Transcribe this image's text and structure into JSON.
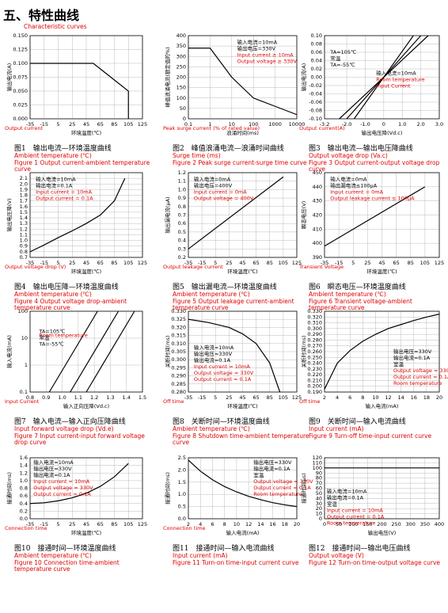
{
  "header": {
    "title": "五、特性曲线",
    "title_en": "Characteristic curves"
  },
  "chart_data": [
    {
      "type": "line",
      "caption": "图1　输出电流—环境温度曲线",
      "caption_en": "Figure 1 Output current-ambient temperature curve",
      "xlabel": "环境温度(℃)",
      "ylabel": "输出电流(A)",
      "xlabel_en": "Ambient temperature (℃)",
      "ylabel_en": "Output current",
      "annotations": [],
      "annotations_en": [],
      "xlim": [
        -35,
        125
      ],
      "xticks": [
        -35,
        -15,
        5,
        25,
        45,
        65,
        85,
        105,
        125
      ],
      "ylim": [
        0,
        0.15
      ],
      "yticks": [
        {
          "value": 0,
          "label": "0.000"
        },
        0.025,
        {
          "value": 0.05,
          "label": "0.050"
        },
        0.075,
        {
          "value": 0.1,
          "label": "0.100"
        },
        0.125,
        {
          "value": 0.15,
          "label": "0.150"
        }
      ],
      "grid": true,
      "series": [
        {
          "color": "#000000",
          "x": [
            -35,
            55,
            105,
            105
          ],
          "values": [
            0.1,
            0.1,
            0.05,
            0
          ]
        }
      ]
    },
    {
      "type": "line",
      "caption": "图2　峰值浪涌电流—浪涌时间曲线",
      "caption_en": "Figure 2  Peak surge current-surge time curve",
      "xlabel": "浪涌时间(ms)",
      "ylabel": "峰值浪涌电流(额定值的%)",
      "xlabel_en": "Surge time (ms)",
      "ylabel_en": "Peak surge current (% of rated value)",
      "annotations": [
        "输入电流=10mA",
        "输出电压=330V"
      ],
      "annotations_en": [
        "Input current ≥ 10mA",
        "Output voltage ≥ 330V"
      ],
      "xscale": "log",
      "xlim": [
        0.1,
        10000
      ],
      "xticks": [
        0.1,
        1,
        10,
        100,
        1000,
        10000
      ],
      "ylim": [
        0,
        400
      ],
      "yticks": [
        0,
        50,
        100,
        150,
        200,
        250,
        300,
        350,
        400
      ],
      "grid": true,
      "series": [
        {
          "color": "#000000",
          "x": [
            0.1,
            1,
            10,
            100,
            1000,
            10000
          ],
          "values": [
            340,
            340,
            200,
            100,
            60,
            20
          ]
        }
      ]
    },
    {
      "type": "line",
      "caption": "图3　输出电流—输出电压降曲线",
      "caption_en": "Figure 3 Output current-output voltage drop curve",
      "xlabel": "输出电压降(Vd.c)",
      "ylabel": "输出电流(A)",
      "xlabel_en": "Output voltage drop (Va.c)",
      "ylabel_en": "Output current(A)",
      "annotations": [
        "输入电流=10mA"
      ],
      "annotations_en": [
        "Room temperature",
        "Input Current"
      ],
      "xlim": [
        -3.2,
        3.0
      ],
      "xticks": [
        -3.2,
        {
          "value": -2,
          "label": "-2.0"
        },
        {
          "value": -1,
          "label": "-1.0"
        },
        0,
        {
          "value": 1,
          "label": "1.0"
        },
        {
          "value": 2,
          "label": "2.0"
        },
        {
          "value": 3,
          "label": "3.0"
        }
      ],
      "ylim": [
        -0.1,
        0.1
      ],
      "yticks": [
        {
          "value": -0.1,
          "label": "-0.10"
        },
        {
          "value": -0.08,
          "label": "-0.08"
        },
        {
          "value": -0.06,
          "label": "-0.06"
        },
        {
          "value": -0.04,
          "label": "-0.04"
        },
        {
          "value": -0.02,
          "label": "-0.02"
        },
        {
          "value": 0,
          "label": "0.00"
        },
        0.02,
        0.04,
        0.06,
        0.08,
        {
          "value": 0.1,
          "label": "0.10"
        }
      ],
      "grid": true,
      "series": [
        {
          "name": "TA=105℃",
          "color": "#000000",
          "x": [
            -1.6,
            1.6
          ],
          "values": [
            -0.1,
            0.1
          ]
        },
        {
          "name": "常温",
          "color": "#000000",
          "x": [
            -2.0,
            2.0
          ],
          "values": [
            -0.1,
            0.1
          ]
        },
        {
          "name": "TA=-55℃",
          "color": "#000000",
          "x": [
            -2.4,
            2.4
          ],
          "values": [
            -0.1,
            0.1
          ]
        }
      ]
    },
    {
      "type": "line",
      "caption": "图4　输出电压降—环境温度曲线",
      "caption_en": "Figure 4 Output voltage drop-ambient temperature curve",
      "xlabel": "环境温度(℃)",
      "ylabel": "输出电压降(V)",
      "xlabel_en": "Ambient temperature (℃)",
      "ylabel_en": "Output voltage drop (V)",
      "annotations": [
        "输入电流=10mA",
        "输出电流=0.1A"
      ],
      "annotations_en": [
        "Input current = 10mA",
        "Output current = 0.1A"
      ],
      "xlim": [
        -35,
        125
      ],
      "xticks": [
        -35,
        -15,
        5,
        25,
        45,
        65,
        85,
        105,
        125
      ],
      "ylim": [
        0.7,
        2.2
      ],
      "yticks": [
        0.7,
        0.8,
        0.9,
        {
          "value": 1,
          "label": "1.0"
        },
        1.1,
        1.2,
        1.3,
        1.4,
        1.5,
        1.6,
        1.7,
        1.8,
        1.9,
        {
          "value": 2,
          "label": "2.0"
        },
        2.1
      ],
      "grid": true,
      "series": [
        {
          "color": "#000000",
          "x": [
            -35,
            -15,
            5,
            25,
            45,
            65,
            85,
            100
          ],
          "values": [
            0.8,
            0.92,
            1.05,
            1.17,
            1.3,
            1.45,
            1.7,
            2.1
          ]
        }
      ]
    },
    {
      "type": "line",
      "caption": "图5　输出漏电流—环境温度曲线",
      "caption_en": "Figure 5 Output leakage current-ambient temperature curve",
      "xlabel": "环境温度(℃)",
      "ylabel": "输出漏电流(μA)",
      "xlabel_en": "Ambient temperature (℃)",
      "ylabel_en": "Output leakage current",
      "annotations": [
        "输入电流=0mA",
        "输出电压=400V"
      ],
      "annotations_en": [
        "Input current = 0mA",
        "Output voltage = 400V"
      ],
      "xlim": [
        -35,
        125
      ],
      "xticks": [
        -35,
        -15,
        5,
        25,
        45,
        65,
        85,
        105,
        125
      ],
      "ylim": [
        0.2,
        1.2
      ],
      "yticks": [
        0.2,
        0.3,
        0.4,
        0.5,
        0.6,
        0.7,
        0.8,
        0.9,
        {
          "value": 1,
          "label": "1.0"
        },
        1.1,
        1.2
      ],
      "grid": true,
      "series": [
        {
          "color": "#000000",
          "x": [
            -35,
            105
          ],
          "values": [
            0.3,
            1.15
          ]
        }
      ]
    },
    {
      "type": "line",
      "caption": "图6　瞬态电压—环境温度曲线",
      "caption_en": "Figure 6 Transient voltage-ambient temperature curve",
      "xlabel": "环境温度(℃)",
      "ylabel": "瞬态电压(V)",
      "xlabel_en": "Ambient temperature (℃)",
      "ylabel_en": "Transient Voltage",
      "annotations": [
        "输入电流=0mA",
        "输出漏电流≤100μA"
      ],
      "annotations_en": [
        "Input current = 0mA",
        "Output leakage current ≤ 100μA"
      ],
      "xlim": [
        -35,
        125
      ],
      "xticks": [
        -35,
        -15,
        5,
        25,
        45,
        65,
        85,
        105,
        125
      ],
      "ylim": [
        390,
        450
      ],
      "yticks": [
        390,
        400,
        410,
        420,
        430,
        440,
        450
      ],
      "grid": true,
      "series": [
        {
          "color": "#000000",
          "x": [
            -35,
            105
          ],
          "values": [
            398,
            440
          ]
        }
      ]
    },
    {
      "type": "line",
      "caption": "图7　输入电流—输入正向压降曲线",
      "caption_en": "Figure 7 Input current-input forward voltage drop curve",
      "xlabel": "输入正向压降(Vd.c)",
      "ylabel": "输入电流(mA)",
      "xlabel_en": "Input forward voltage drop (Vd.e)",
      "ylabel_en": "Input Current",
      "annotations": [],
      "annotations_en": [
        "Room temperature"
      ],
      "yscale": "log",
      "xlim": [
        0.8,
        1.5
      ],
      "xticks": [
        0.8,
        0.9,
        {
          "value": 1,
          "label": "1.0"
        },
        1.1,
        1.2,
        1.3,
        1.4,
        1.5
      ],
      "ylim": [
        0.1,
        100
      ],
      "yticks": [
        0.1,
        1,
        10,
        100
      ],
      "grid": true,
      "series": [
        {
          "name": "TA=105℃",
          "color": "#000000",
          "x": [
            0.92,
            1.22
          ],
          "values": [
            0.1,
            100
          ]
        },
        {
          "name": "常温",
          "color": "#000000",
          "x": [
            1.05,
            1.35
          ],
          "values": [
            0.1,
            100
          ]
        },
        {
          "name": "TA=-55℃",
          "color": "#000000",
          "x": [
            1.15,
            1.45
          ],
          "values": [
            0.1,
            100
          ]
        }
      ]
    },
    {
      "type": "line",
      "caption": "图8　关断时间—环境温度曲线",
      "caption_en": "Figure 8 Shutdown time-ambient temperature curve",
      "xlabel": "环境温度(℃)",
      "ylabel": "关断时间(ms)",
      "xlabel_en": "Ambient temperature (℃)",
      "ylabel_en": "Off time",
      "annotations": [
        "输入电流=10mA",
        "输出电压=330V",
        "输出电流=0.1A"
      ],
      "annotations_en": [
        "Input current = 10mA",
        "Output voltage = 330V",
        "Output current = 0.1A"
      ],
      "xlim": [
        -35,
        125
      ],
      "xticks": [
        -35,
        -15,
        5,
        25,
        45,
        65,
        85,
        105,
        125
      ],
      "ylim": [
        0.28,
        0.33
      ],
      "yticks": [
        {
          "value": 0.28,
          "label": "0.280"
        },
        0.285,
        {
          "value": 0.29,
          "label": "0.290"
        },
        0.295,
        {
          "value": 0.3,
          "label": "0.300"
        },
        0.305,
        {
          "value": 0.31,
          "label": "0.310"
        },
        0.315,
        {
          "value": 0.32,
          "label": "0.320"
        },
        0.325,
        {
          "value": 0.33,
          "label": "0.330"
        }
      ],
      "grid": true,
      "series": [
        {
          "color": "#000000",
          "x": [
            -35,
            -5,
            25,
            45,
            65,
            85,
            100
          ],
          "values": [
            0.325,
            0.323,
            0.32,
            0.316,
            0.31,
            0.298,
            0.28
          ]
        }
      ]
    },
    {
      "type": "line",
      "caption": "图9　关断时间—输入电流曲线",
      "caption_en": "Figure 9 Turn-off time-input current curve",
      "xlabel": "输入电流(mA)",
      "ylabel": "关断时间(ms)",
      "xlabel_en": "Input current (mA)",
      "ylabel_en": "Off time",
      "annotations": [
        "输出电压=330V",
        "输出电流=0.1A",
        "室温"
      ],
      "annotations_en": [
        "Output voltage = 330V",
        "Output current = 0.1A",
        "Room temperature"
      ],
      "xlim": [
        2,
        20
      ],
      "xticks": [
        2,
        4,
        6,
        8,
        10,
        12,
        14,
        16,
        18,
        20
      ],
      "ylim": [
        0.19,
        0.33
      ],
      "yticks": [
        {
          "value": 0.19,
          "label": "0.190"
        },
        {
          "value": 0.2,
          "label": "0.200"
        },
        {
          "value": 0.21,
          "label": "0.210"
        },
        {
          "value": 0.22,
          "label": "0.220"
        },
        {
          "value": 0.23,
          "label": "0.230"
        },
        {
          "value": 0.24,
          "label": "0.240"
        },
        {
          "value": 0.25,
          "label": "0.250"
        },
        {
          "value": 0.26,
          "label": "0.260"
        },
        {
          "value": 0.27,
          "label": "0.270"
        },
        {
          "value": 0.28,
          "label": "0.280"
        },
        {
          "value": 0.29,
          "label": "0.290"
        },
        {
          "value": 0.3,
          "label": "0.300"
        },
        {
          "value": 0.31,
          "label": "0.310"
        },
        {
          "value": 0.32,
          "label": "0.320"
        },
        {
          "value": 0.33,
          "label": "0.330"
        }
      ],
      "grid": true,
      "series": [
        {
          "color": "#000000",
          "x": [
            2,
            4,
            6,
            8,
            10,
            12,
            14,
            16,
            18,
            20
          ],
          "values": [
            0.195,
            0.24,
            0.262,
            0.278,
            0.29,
            0.3,
            0.307,
            0.314,
            0.32,
            0.325
          ]
        }
      ]
    },
    {
      "type": "line",
      "caption": "图10　接通时间—环境温度曲线",
      "caption_en": "Figure 10 Connection time-ambient temperature curve",
      "xlabel": "环境温度(℃)",
      "ylabel": "接通时间(ms)",
      "xlabel_en": "Ambient temperature (℃)",
      "ylabel_en": "Connection time",
      "annotations": [
        "输入电流=10mA",
        "输出电压=330V",
        "输出电流=0.1A"
      ],
      "annotations_en": [
        "Input current = 10mA",
        "Output voltage = 330V",
        "Output current = 0.1A"
      ],
      "xlim": [
        -35,
        125
      ],
      "xticks": [
        -35,
        -15,
        5,
        25,
        45,
        65,
        85,
        105,
        125
      ],
      "ylim": [
        0,
        1.6
      ],
      "yticks": [
        {
          "value": 0,
          "label": "0.0"
        },
        0.2,
        0.4,
        0.6,
        0.8,
        {
          "value": 1,
          "label": "1.0"
        },
        1.2,
        1.4,
        1.6
      ],
      "grid": true,
      "series": [
        {
          "color": "#000000",
          "x": [
            -35,
            -15,
            5,
            25,
            45,
            65,
            85,
            105
          ],
          "values": [
            0.4,
            0.42,
            0.47,
            0.55,
            0.67,
            0.85,
            1.1,
            1.45
          ]
        }
      ]
    },
    {
      "type": "line",
      "caption": "图11　接通时间—输入电流曲线",
      "caption_en": "Figure 11 Turn-on time-input current curve",
      "xlabel": "输入电流(mA)",
      "ylabel": "接通时间(ms)",
      "xlabel_en": "Input current (mA)",
      "ylabel_en": "Connection time",
      "annotations": [
        "输出电压=330V",
        "输出电流=0.1A",
        "室温"
      ],
      "annotations_en": [
        "Output voltage = 330V",
        "Output current = 0.1A",
        "Room temperature"
      ],
      "xlim": [
        2,
        20
      ],
      "xticks": [
        2,
        4,
        6,
        8,
        10,
        12,
        14,
        16,
        18,
        20
      ],
      "ylim": [
        0,
        2.5
      ],
      "yticks": [
        {
          "value": 0,
          "label": "0.0"
        },
        0.5,
        {
          "value": 1,
          "label": "1.0"
        },
        1.5,
        {
          "value": 2,
          "label": "2.0"
        },
        2.5
      ],
      "grid": true,
      "series": [
        {
          "color": "#000000",
          "x": [
            2,
            4,
            6,
            8,
            10,
            12,
            14,
            16,
            18,
            20
          ],
          "values": [
            2.4,
            1.95,
            1.6,
            1.32,
            1.1,
            0.92,
            0.78,
            0.66,
            0.57,
            0.5
          ]
        }
      ]
    },
    {
      "type": "line",
      "caption": "图12　接通时间—输出电压曲线",
      "caption_en": "Figure 12 Turn-on time-output voltage curve",
      "xlabel": "输出电压(V)",
      "ylabel": "接通时间(μs)",
      "xlabel_en": "Output voltage (V)",
      "ylabel_en": "",
      "annotations": [
        "输入电流=10mA",
        "输出电流=0.1A",
        "室温"
      ],
      "annotations_en": [
        "Input current = 10mA",
        "Output current = 0.1A",
        "Room temperature"
      ],
      "xlim": [
        0,
        400
      ],
      "xticks": [
        0,
        50,
        100,
        150,
        200,
        250,
        300,
        350,
        400
      ],
      "ylim": [
        0,
        120
      ],
      "yticks": [
        0,
        10,
        20,
        30,
        40,
        50,
        60,
        70,
        80,
        90,
        100,
        110,
        120
      ],
      "grid": true,
      "series": [
        {
          "color": "#000000",
          "x": [
            0,
            400
          ],
          "values": [
            100,
            100
          ]
        }
      ]
    }
  ]
}
